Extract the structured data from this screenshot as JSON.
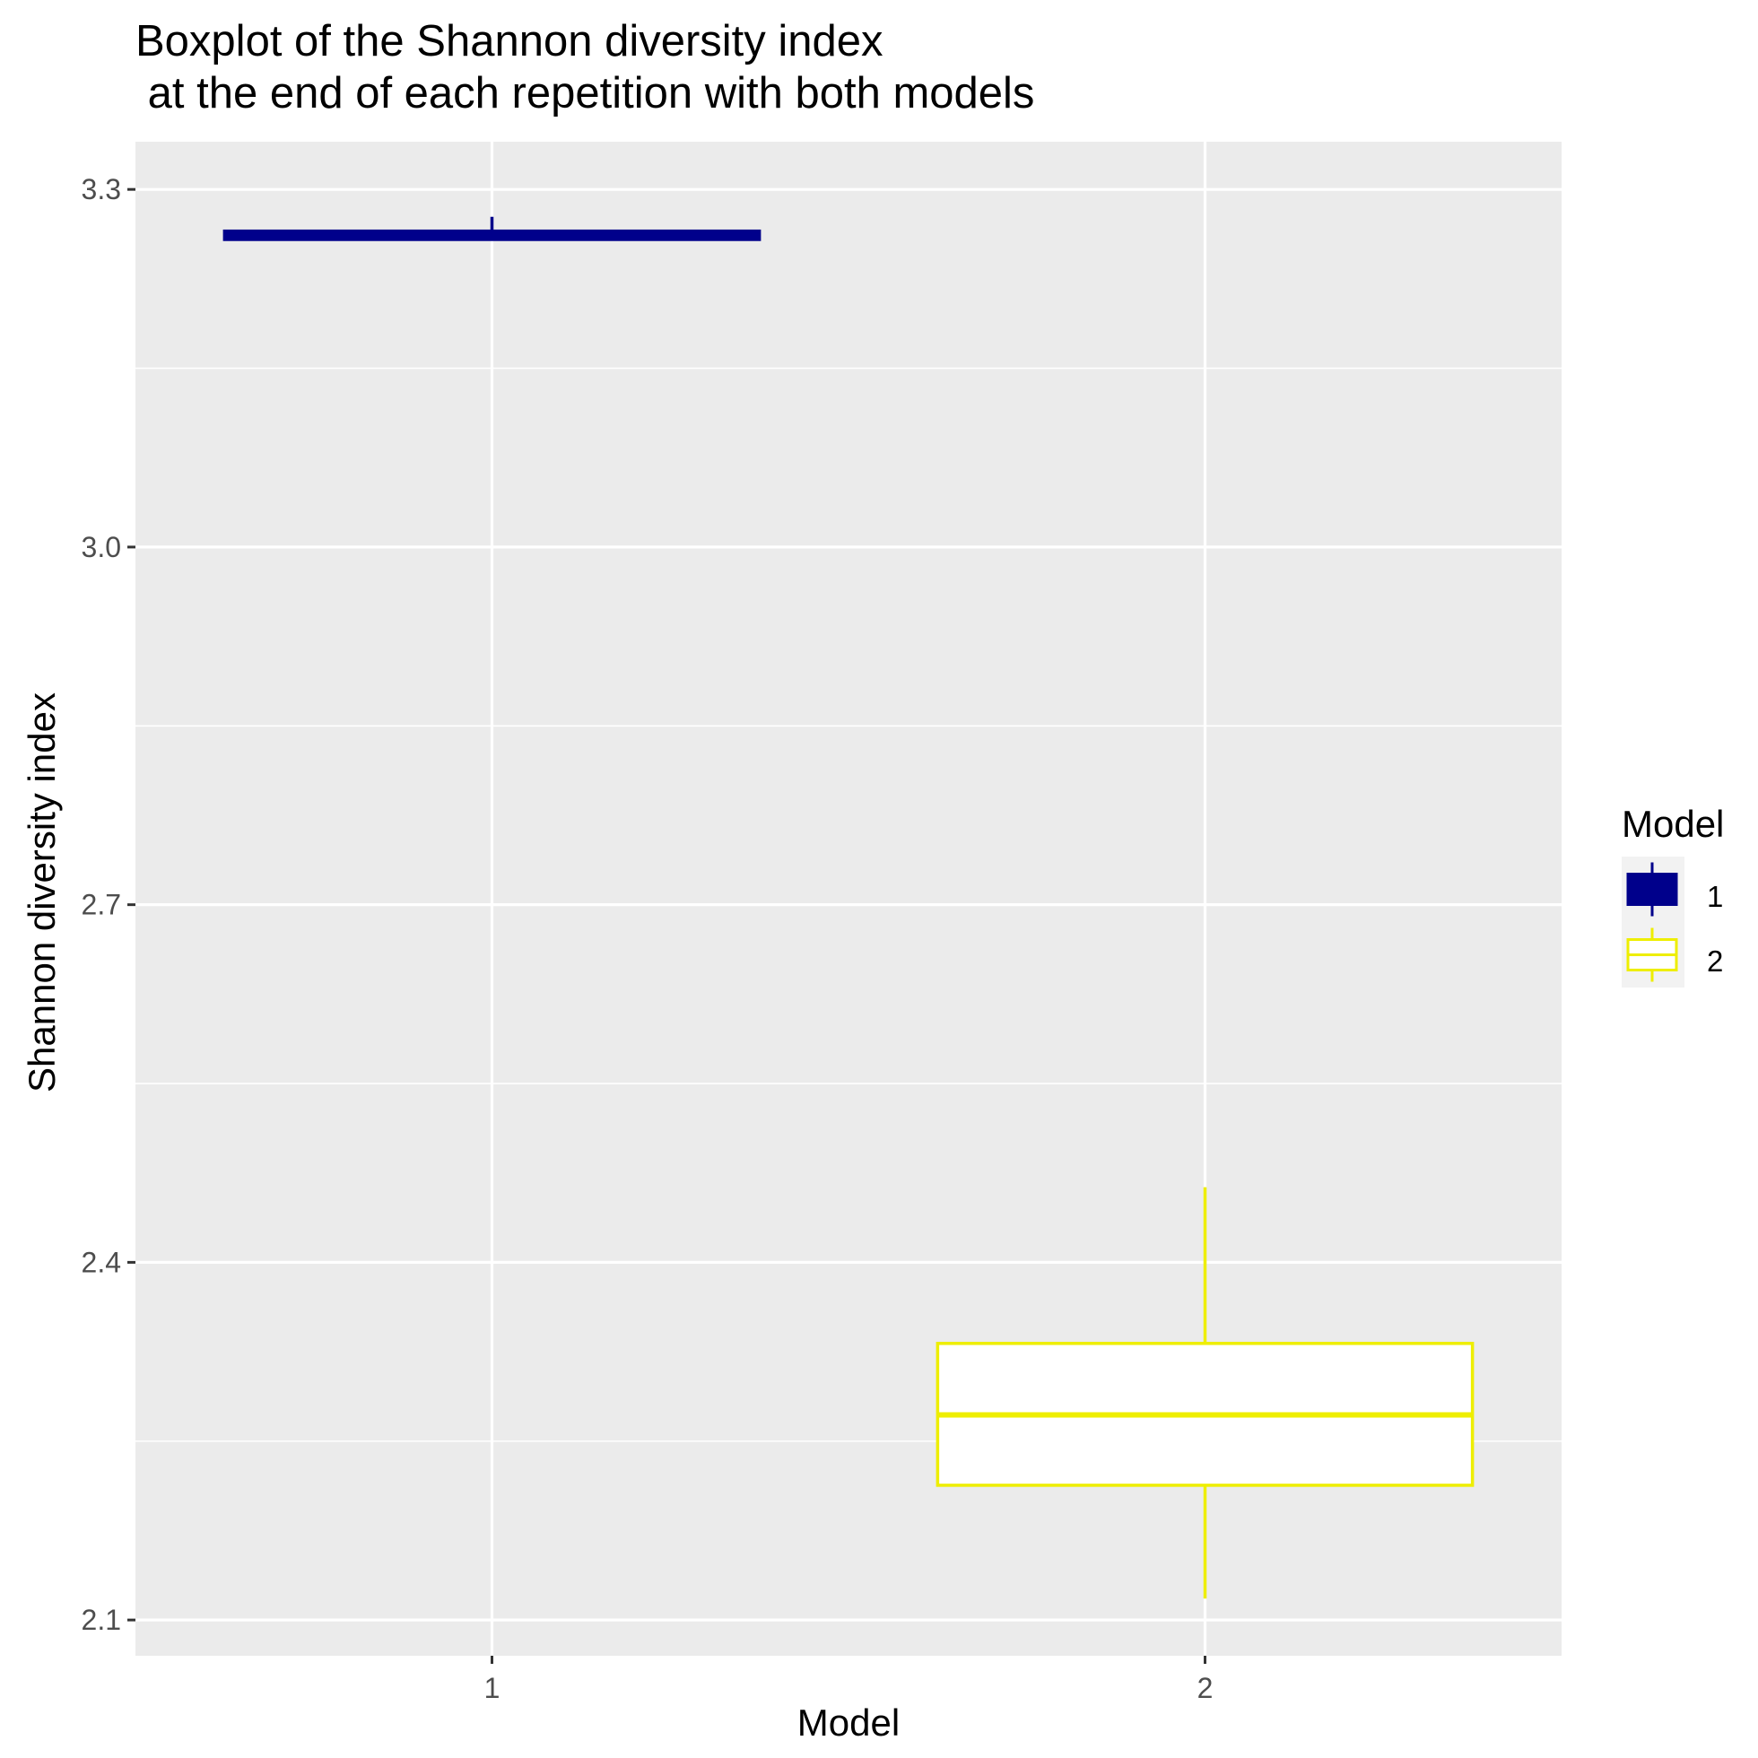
{
  "chart_data": {
    "type": "boxplot",
    "title": [
      "Boxplot of the Shannon diversity index",
      " at the end of each repetition with both models"
    ],
    "xlabel": "Model",
    "ylabel": "Shannon diversity index",
    "categories": [
      "1",
      "2"
    ],
    "ylim": [
      2.07,
      3.34
    ],
    "yticks": [
      2.1,
      2.4,
      2.7,
      3.0,
      3.3
    ],
    "ytick_labels": [
      "2.1",
      "2.4",
      "2.7",
      "3.0",
      "3.3"
    ],
    "grid": true,
    "legend": {
      "title": "Model",
      "position": "right",
      "entries": [
        "1",
        "2"
      ]
    },
    "series": [
      {
        "name": "1",
        "color": "#00008B",
        "fill": "#00008B",
        "min": 3.257,
        "q1": 3.258,
        "median": 3.261,
        "q3": 3.265,
        "max": 3.277
      },
      {
        "name": "2",
        "color": "#EEEE00",
        "fill": "#FFFFFF",
        "min": 2.118,
        "q1": 2.213,
        "median": 2.272,
        "q3": 2.332,
        "max": 2.463
      }
    ]
  }
}
